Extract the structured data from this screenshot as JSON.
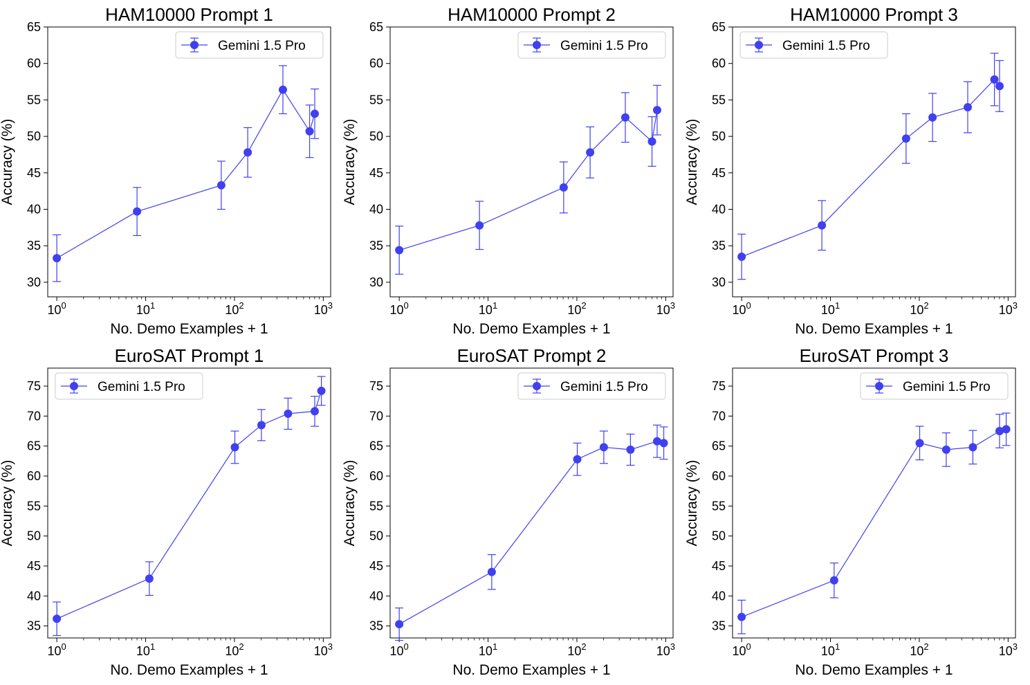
{
  "series_color": "#4040f0",
  "chart_data": [
    {
      "type": "line",
      "title": "HAM10000 Prompt 1",
      "xlabel": "No. Demo Examples + 1",
      "ylabel": "Accuracy (%)",
      "xscale": "log",
      "xlim": [
        0.79,
        1210
      ],
      "ylim": [
        28,
        65
      ],
      "yticks": [
        30,
        35,
        40,
        45,
        50,
        55,
        60,
        65
      ],
      "xticks": [
        {
          "base": "10",
          "exp": "0",
          "value": 1
        },
        {
          "base": "10",
          "exp": "1",
          "value": 10
        },
        {
          "base": "10",
          "exp": "2",
          "value": 100
        },
        {
          "base": "10",
          "exp": "3",
          "value": 1000
        }
      ],
      "legend": {
        "label": "Gemini 1.5 Pro",
        "loc": "upper right"
      },
      "series": [
        {
          "name": "Gemini 1.5 Pro",
          "x": [
            1,
            8,
            71,
            141,
            351,
            701,
            801
          ],
          "y": [
            33.3,
            39.7,
            43.3,
            47.8,
            56.4,
            50.7,
            53.1
          ],
          "yerr": [
            3.2,
            3.3,
            3.3,
            3.4,
            3.3,
            3.6,
            3.4
          ]
        }
      ]
    },
    {
      "type": "line",
      "title": "HAM10000 Prompt 2",
      "xlabel": "No. Demo Examples + 1",
      "ylabel": "Accuracy (%)",
      "xscale": "log",
      "xlim": [
        0.79,
        1210
      ],
      "ylim": [
        28,
        65
      ],
      "yticks": [
        30,
        35,
        40,
        45,
        50,
        55,
        60,
        65
      ],
      "xticks": [
        {
          "base": "10",
          "exp": "0",
          "value": 1
        },
        {
          "base": "10",
          "exp": "1",
          "value": 10
        },
        {
          "base": "10",
          "exp": "2",
          "value": 100
        },
        {
          "base": "10",
          "exp": "3",
          "value": 1000
        }
      ],
      "legend": {
        "label": "Gemini 1.5 Pro",
        "loc": "upper right"
      },
      "series": [
        {
          "name": "Gemini 1.5 Pro",
          "x": [
            1,
            8,
            71,
            141,
            351,
            701,
            801
          ],
          "y": [
            34.4,
            37.8,
            43.0,
            47.8,
            52.6,
            49.3,
            53.6
          ],
          "yerr": [
            3.3,
            3.3,
            3.5,
            3.5,
            3.4,
            3.4,
            3.4
          ]
        }
      ]
    },
    {
      "type": "line",
      "title": "HAM10000 Prompt 3",
      "xlabel": "No. Demo Examples + 1",
      "ylabel": "Accuracy (%)",
      "xscale": "log",
      "xlim": [
        0.79,
        1210
      ],
      "ylim": [
        28,
        65
      ],
      "yticks": [
        30,
        35,
        40,
        45,
        50,
        55,
        60,
        65
      ],
      "xticks": [
        {
          "base": "10",
          "exp": "0",
          "value": 1
        },
        {
          "base": "10",
          "exp": "1",
          "value": 10
        },
        {
          "base": "10",
          "exp": "2",
          "value": 100
        },
        {
          "base": "10",
          "exp": "3",
          "value": 1000
        }
      ],
      "legend": {
        "label": "Gemini 1.5 Pro",
        "loc": "upper left"
      },
      "series": [
        {
          "name": "Gemini 1.5 Pro",
          "x": [
            1,
            8,
            71,
            141,
            351,
            701,
            801
          ],
          "y": [
            33.5,
            37.8,
            49.7,
            52.6,
            54.0,
            57.8,
            56.9
          ],
          "yerr": [
            3.1,
            3.4,
            3.4,
            3.3,
            3.5,
            3.6,
            3.5
          ]
        }
      ]
    },
    {
      "type": "line",
      "title": "EuroSAT Prompt 1",
      "xlabel": "No. Demo Examples + 1",
      "ylabel": "Accuracy (%)",
      "xscale": "log",
      "xlim": [
        0.79,
        1210
      ],
      "ylim": [
        33,
        78
      ],
      "yticks": [
        35,
        40,
        45,
        50,
        55,
        60,
        65,
        70,
        75
      ],
      "xticks": [
        {
          "base": "10",
          "exp": "0",
          "value": 1
        },
        {
          "base": "10",
          "exp": "1",
          "value": 10
        },
        {
          "base": "10",
          "exp": "2",
          "value": 100
        },
        {
          "base": "10",
          "exp": "3",
          "value": 1000
        }
      ],
      "legend": {
        "label": "Gemini 1.5 Pro",
        "loc": "upper left"
      },
      "series": [
        {
          "name": "Gemini 1.5 Pro",
          "x": [
            1,
            11,
            101,
            201,
            401,
            801,
            951
          ],
          "y": [
            36.2,
            42.9,
            64.8,
            68.5,
            70.4,
            70.8,
            74.2
          ],
          "yerr": [
            2.8,
            2.8,
            2.7,
            2.6,
            2.6,
            2.5,
            2.4
          ]
        }
      ]
    },
    {
      "type": "line",
      "title": "EuroSAT Prompt 2",
      "xlabel": "No. Demo Examples + 1",
      "ylabel": "Accuracy (%)",
      "xscale": "log",
      "xlim": [
        0.79,
        1210
      ],
      "ylim": [
        33,
        78
      ],
      "yticks": [
        35,
        40,
        45,
        50,
        55,
        60,
        65,
        70,
        75
      ],
      "xticks": [
        {
          "base": "10",
          "exp": "0",
          "value": 1
        },
        {
          "base": "10",
          "exp": "1",
          "value": 10
        },
        {
          "base": "10",
          "exp": "2",
          "value": 100
        },
        {
          "base": "10",
          "exp": "3",
          "value": 1000
        }
      ],
      "legend": {
        "label": "Gemini 1.5 Pro",
        "loc": "upper right"
      },
      "series": [
        {
          "name": "Gemini 1.5 Pro",
          "x": [
            1,
            11,
            101,
            201,
            401,
            801,
            951
          ],
          "y": [
            35.3,
            44.0,
            62.8,
            64.8,
            64.4,
            65.8,
            65.5
          ],
          "yerr": [
            2.7,
            2.9,
            2.7,
            2.7,
            2.6,
            2.7,
            2.7
          ]
        }
      ]
    },
    {
      "type": "line",
      "title": "EuroSAT Prompt 3",
      "xlabel": "No. Demo Examples + 1",
      "ylabel": "Accuracy (%)",
      "xscale": "log",
      "xlim": [
        0.79,
        1210
      ],
      "ylim": [
        33,
        78
      ],
      "yticks": [
        35,
        40,
        45,
        50,
        55,
        60,
        65,
        70,
        75
      ],
      "xticks": [
        {
          "base": "10",
          "exp": "0",
          "value": 1
        },
        {
          "base": "10",
          "exp": "1",
          "value": 10
        },
        {
          "base": "10",
          "exp": "2",
          "value": 100
        },
        {
          "base": "10",
          "exp": "3",
          "value": 1000
        }
      ],
      "legend": {
        "label": "Gemini 1.5 Pro",
        "loc": "upper right"
      },
      "series": [
        {
          "name": "Gemini 1.5 Pro",
          "x": [
            1,
            11,
            101,
            201,
            401,
            801,
            951
          ],
          "y": [
            36.5,
            42.6,
            65.5,
            64.4,
            64.8,
            67.5,
            67.8
          ],
          "yerr": [
            2.8,
            2.9,
            2.8,
            2.8,
            2.8,
            2.8,
            2.7
          ]
        }
      ]
    }
  ]
}
